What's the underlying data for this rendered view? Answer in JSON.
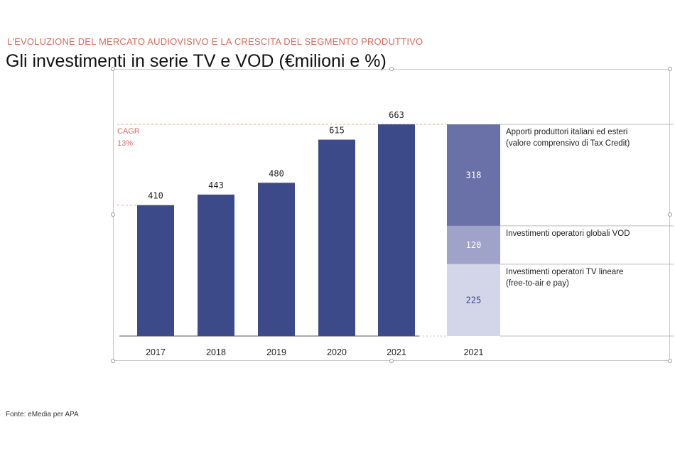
{
  "header": {
    "subtitle": "L'EVOLUZIONE DEL MERCATO AUDIOVISIVO E LA CRESCITA DEL SEGMENTO PRODUTTIVO",
    "title": "Gli investimenti in serie TV e VOD (€milioni e %)"
  },
  "footer": {
    "source": "Fonte: eMedia per APA"
  },
  "colors": {
    "bar": "#3d4a8a",
    "seg_top": "#6a70a8",
    "seg_mid": "#9fa3c9",
    "seg_bottom": "#d3d5e8",
    "accent": "#d96a5e"
  },
  "chart_data": {
    "type": "bar",
    "categories": [
      "2017",
      "2018",
      "2019",
      "2020",
      "2021"
    ],
    "values": [
      410,
      443,
      480,
      615,
      663
    ],
    "ylim": [
      0,
      663
    ],
    "annotation": {
      "line1": "CAGR",
      "line2": "13%"
    },
    "breakdown": {
      "category": "2021",
      "segments": [
        {
          "value": 318,
          "legend_lines": [
            "Apporti produttori italiani ed esteri",
            "(valore comprensivo di Tax Credit)"
          ]
        },
        {
          "value": 120,
          "legend_lines": [
            "Investimenti operatori globali VOD"
          ]
        },
        {
          "value": 225,
          "legend_lines": [
            "Investimenti operatori TV lineare",
            "(free-to-air e pay)"
          ]
        }
      ]
    }
  }
}
